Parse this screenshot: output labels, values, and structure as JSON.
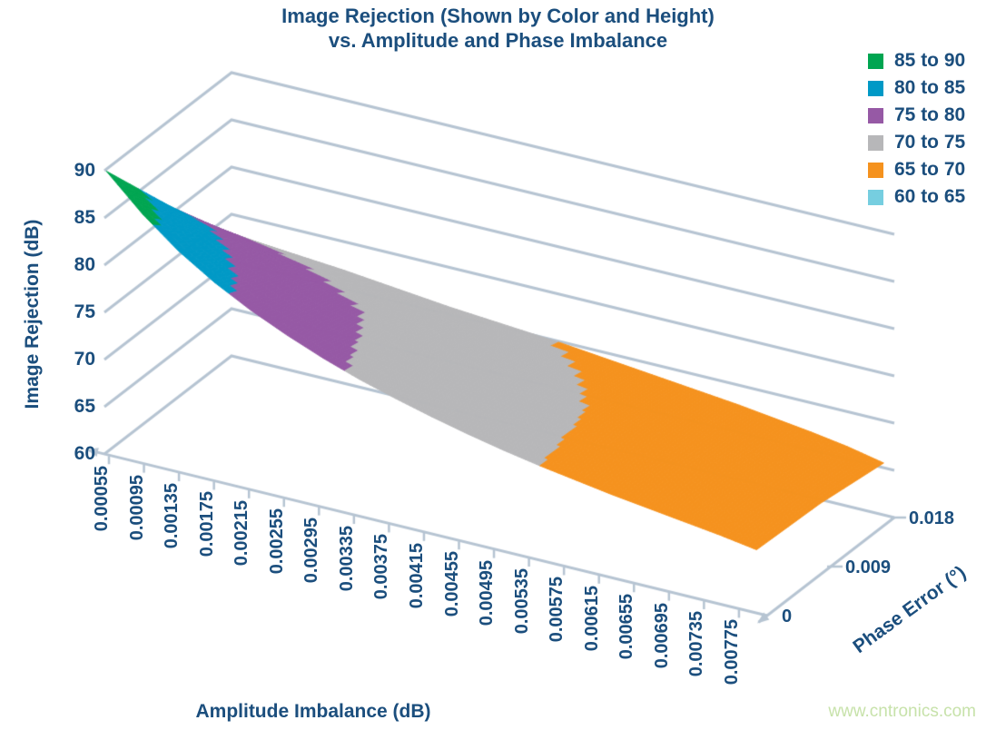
{
  "header": {
    "line1": "Image Rejection (Shown by Color and Height)",
    "line2": "vs. Amplitude and Phase Imbalance"
  },
  "colors": {
    "text": "#1B4E7D",
    "grid": "#B6C4D2",
    "background": "#FFFFFF",
    "watermark_text": "#C7E2AA"
  },
  "watermark": "www.cntronics.com",
  "chart_data": {
    "type": "surface",
    "title": "Image Rejection (Shown by Color and Height) vs. Amplitude and Phase Imbalance",
    "xlabel": "Amplitude Imbalance (dB)",
    "ylabel": "Image Rejection (dB)",
    "zlabel": "Phase Error (°)",
    "x_ticks": [
      "0.00055",
      "0.00095",
      "0.00135",
      "0.00175",
      "0.00215",
      "0.00255",
      "0.00295",
      "0.00335",
      "0.00375",
      "0.00415",
      "0.00455",
      "0.00495",
      "0.00535",
      "0.00575",
      "0.00615",
      "0.00655",
      "0.00695",
      "0.00735",
      "0.00775"
    ],
    "y_ticks": [
      90,
      85,
      80,
      75,
      70,
      65,
      60
    ],
    "ylim": [
      60,
      90
    ],
    "z_ticks": [
      "0",
      "0.009",
      "0.018"
    ],
    "grid": true,
    "legend_position": "top-right",
    "series": [
      {
        "name": "0",
        "values": [
          90.0,
          86.4,
          83.4,
          81.0,
          79.0,
          77.3,
          75.8,
          74.5,
          73.4,
          72.4,
          71.5,
          70.7,
          70.0,
          69.4,
          68.8,
          68.3,
          67.8,
          67.3,
          66.7
        ]
      },
      {
        "name": "0.009",
        "values": [
          81.1,
          80.0,
          78.7,
          77.5,
          76.3,
          75.2,
          74.3,
          73.4,
          72.6,
          71.8,
          71.0,
          70.3,
          69.7,
          69.1,
          68.5,
          68.0,
          67.5,
          66.9,
          66.4
        ]
      },
      {
        "name": "0.018",
        "values": [
          72.8,
          72.6,
          72.3,
          72.0,
          71.6,
          71.2,
          70.8,
          70.5,
          70.2,
          69.9,
          69.5,
          69.1,
          68.7,
          68.3,
          67.9,
          67.4,
          66.9,
          66.3,
          65.5
        ]
      }
    ],
    "bands": [
      {
        "label": "85 to 90",
        "min": 85,
        "max": 90,
        "color": "#00A551"
      },
      {
        "label": "80 to 85",
        "min": 80,
        "max": 85,
        "color": "#0099C6"
      },
      {
        "label": "75 to 80",
        "min": 75,
        "max": 80,
        "color": "#9659A5"
      },
      {
        "label": "70 to 75",
        "min": 70,
        "max": 75,
        "color": "#B7B7B9"
      },
      {
        "label": "65 to 70",
        "min": 65,
        "max": 70,
        "color": "#F5921E"
      },
      {
        "label": "60 to 65",
        "min": 60,
        "max": 65,
        "color": "#76CEE0"
      }
    ]
  }
}
